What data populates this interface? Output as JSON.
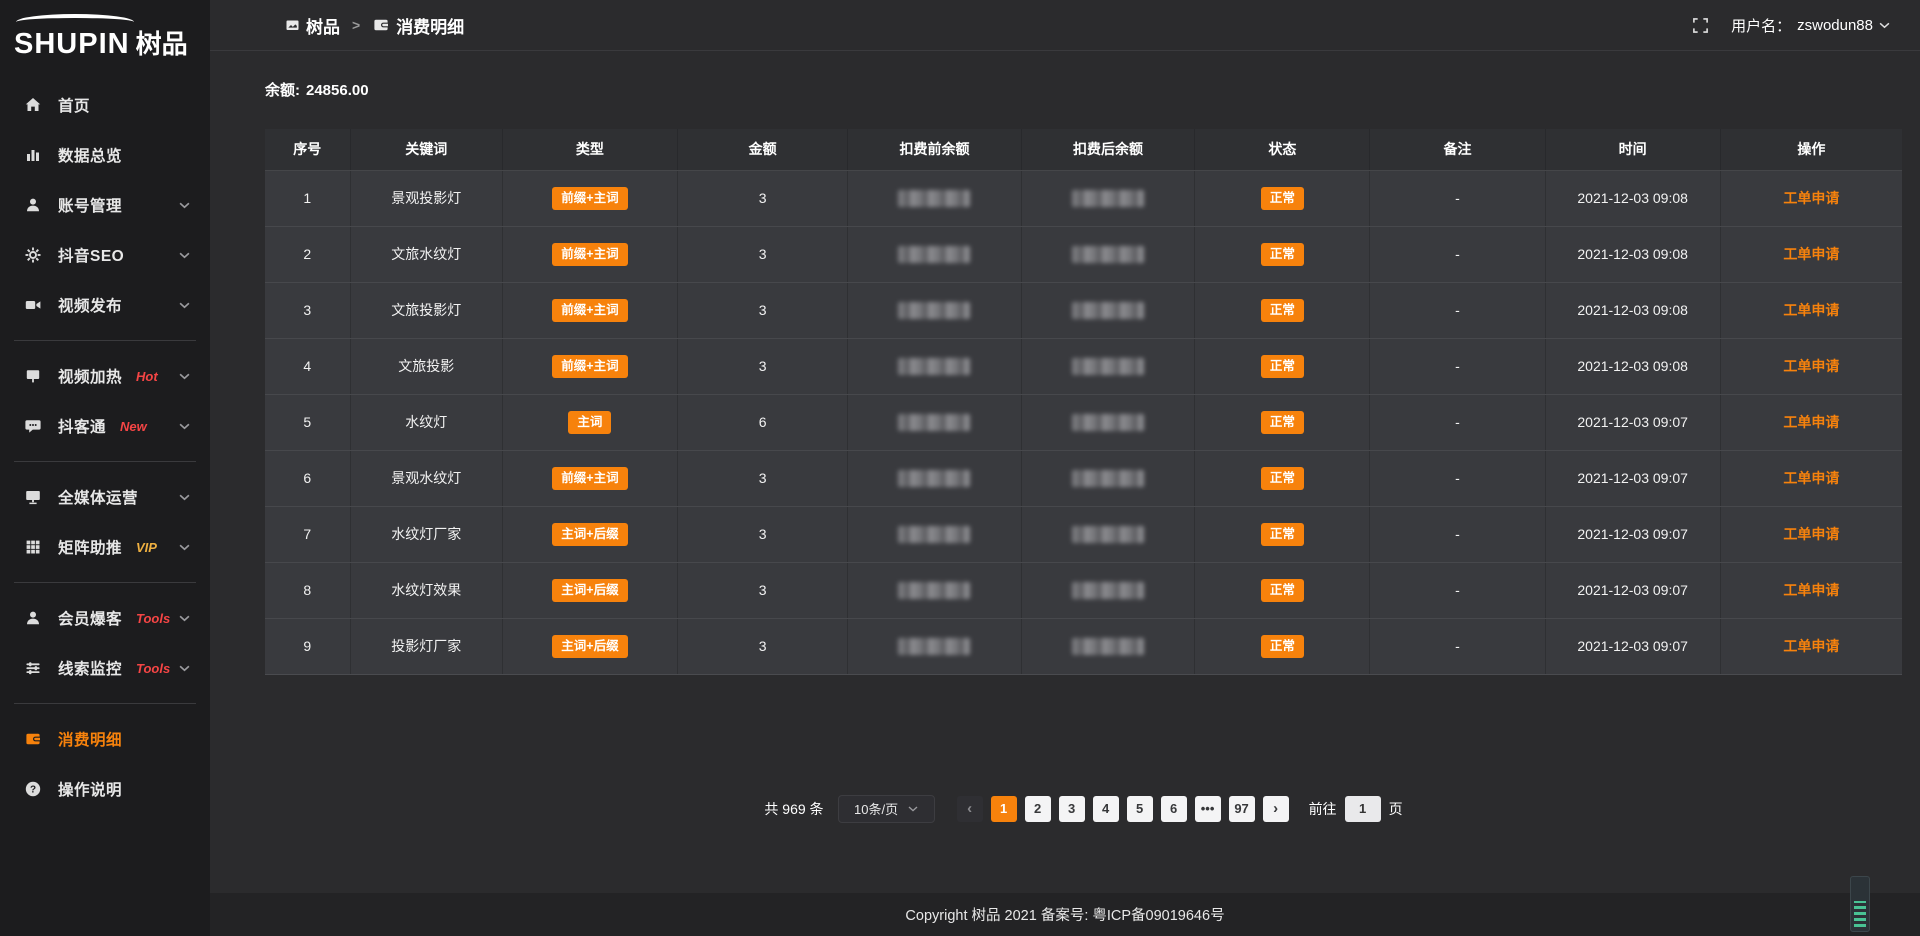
{
  "colors": {
    "accent": "#f7820c",
    "hot_red": "#f54545",
    "vip_gold": "#efb041",
    "sidebar_bg": "#1c1c1e",
    "content_bg": "#2b2b2d"
  },
  "sidebar": {
    "logo_main": "SHUPIN",
    "logo_cn": "树品",
    "items": [
      {
        "id": "home",
        "icon": "home-icon",
        "label": "首页"
      },
      {
        "id": "data-overview",
        "icon": "bar-chart-icon",
        "label": "数据总览"
      },
      {
        "id": "account-management",
        "icon": "user-icon",
        "label": "账号管理",
        "chevron": true
      },
      {
        "id": "douyin-seo",
        "icon": "gear-icon",
        "label": "抖音SEO",
        "chevron": true
      },
      {
        "id": "video-publish",
        "icon": "video-icon",
        "label": "视频发布",
        "chevron": true,
        "divider_after": true
      },
      {
        "id": "video-heat",
        "icon": "monitor-icon",
        "label": "视频加热",
        "badge": "Hot",
        "badge_color": "red",
        "chevron": true
      },
      {
        "id": "douketong",
        "icon": "chat-icon",
        "label": "抖客通",
        "badge": "New",
        "badge_color": "red",
        "chevron": true,
        "divider_after": true
      },
      {
        "id": "media-operation",
        "icon": "display-icon",
        "label": "全媒体运营",
        "chevron": true
      },
      {
        "id": "matrix-boost",
        "icon": "grid-icon",
        "label": "矩阵助推",
        "badge": "VIP",
        "badge_color": "gold",
        "chevron": true,
        "divider_after": true
      },
      {
        "id": "member-burst",
        "icon": "person-icon",
        "label": "会员爆客",
        "badge": "Tools",
        "badge_color": "red",
        "chevron": true
      },
      {
        "id": "clue-monitor",
        "icon": "sliders-icon",
        "label": "线索监控",
        "badge": "Tools",
        "badge_color": "red",
        "chevron": true,
        "divider_after": true
      },
      {
        "id": "consumption-detail",
        "icon": "wallet-icon",
        "label": "消费明细",
        "active": true
      },
      {
        "id": "operation-guide",
        "icon": "question-icon",
        "label": "操作说明"
      }
    ]
  },
  "topbar": {
    "breadcrumb": [
      {
        "label": "树品",
        "icon": "app-icon"
      },
      {
        "label": "消费明细",
        "icon": "wallet-icon"
      }
    ],
    "separator": ">",
    "username_label": "用户名：",
    "username": "zswodun88"
  },
  "main": {
    "balance_label": "余额:",
    "balance_value": "24856.00"
  },
  "table": {
    "columns": [
      "序号",
      "关键词",
      "类型",
      "金额",
      "扣费前余额",
      "扣费后余额",
      "状态",
      "备注",
      "时间",
      "操作"
    ],
    "rows": [
      {
        "index": "1",
        "keyword": "景观投影灯",
        "type": "前缀+主词",
        "amount": "3",
        "balance_before": "",
        "balance_after": "",
        "status": "正常",
        "note": "-",
        "time": "2021-12-03 09:08",
        "action": "工单申请"
      },
      {
        "index": "2",
        "keyword": "文旅水纹灯",
        "type": "前缀+主词",
        "amount": "3",
        "balance_before": "",
        "balance_after": "",
        "status": "正常",
        "note": "-",
        "time": "2021-12-03 09:08",
        "action": "工单申请"
      },
      {
        "index": "3",
        "keyword": "文旅投影灯",
        "type": "前缀+主词",
        "amount": "3",
        "balance_before": "",
        "balance_after": "",
        "status": "正常",
        "note": "-",
        "time": "2021-12-03 09:08",
        "action": "工单申请"
      },
      {
        "index": "4",
        "keyword": "文旅投影",
        "type": "前缀+主词",
        "amount": "3",
        "balance_before": "",
        "balance_after": "",
        "status": "正常",
        "note": "-",
        "time": "2021-12-03 09:08",
        "action": "工单申请"
      },
      {
        "index": "5",
        "keyword": "水纹灯",
        "type": "主词",
        "amount": "6",
        "balance_before": "",
        "balance_after": "",
        "status": "正常",
        "note": "-",
        "time": "2021-12-03 09:07",
        "action": "工单申请"
      },
      {
        "index": "6",
        "keyword": "景观水纹灯",
        "type": "前缀+主词",
        "amount": "3",
        "balance_before": "",
        "balance_after": "",
        "status": "正常",
        "note": "-",
        "time": "2021-12-03 09:07",
        "action": "工单申请"
      },
      {
        "index": "7",
        "keyword": "水纹灯厂家",
        "type": "主词+后缀",
        "amount": "3",
        "balance_before": "",
        "balance_after": "",
        "status": "正常",
        "note": "-",
        "time": "2021-12-03 09:07",
        "action": "工单申请"
      },
      {
        "index": "8",
        "keyword": "水纹灯效果",
        "type": "主词+后缀",
        "amount": "3",
        "balance_before": "",
        "balance_after": "",
        "status": "正常",
        "note": "-",
        "time": "2021-12-03 09:07",
        "action": "工单申请"
      },
      {
        "index": "9",
        "keyword": "投影灯厂家",
        "type": "主词+后缀",
        "amount": "3",
        "balance_before": "",
        "balance_after": "",
        "status": "正常",
        "note": "-",
        "time": "2021-12-03 09:07",
        "action": "工单申请"
      }
    ]
  },
  "pagination": {
    "total_text": "共 969 条",
    "page_size": "10条/页",
    "prev_arrow": "‹",
    "next_arrow": "›",
    "pages": [
      "1",
      "2",
      "3",
      "4",
      "5",
      "6",
      "•••",
      "97"
    ],
    "active_page": "1",
    "goto_label": "前往",
    "goto_value": "1",
    "goto_suffix": "页"
  },
  "footer": {
    "copyright": "Copyright 树品 2021 备案号: 粤ICP备09019646号"
  }
}
